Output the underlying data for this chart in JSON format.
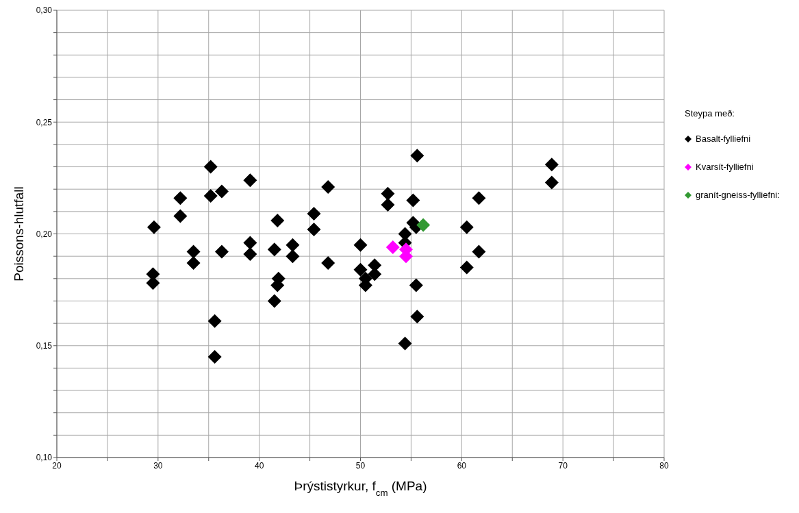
{
  "chart_data": {
    "type": "scatter",
    "xlabel": "Þrýstistyrkur, f$_{cm}$ (MPa)",
    "ylabel": "Poissons-hlutfall",
    "legend_title": "Steypa með:",
    "legend": "right",
    "grid": true,
    "marker": "diamond",
    "xlim": [
      20,
      80
    ],
    "xticks": [
      20,
      {
        "value": 25,
        "label": null
      },
      30,
      {
        "value": 35,
        "label": null
      },
      40,
      {
        "value": 45,
        "label": null
      },
      50,
      {
        "value": 55,
        "label": null
      },
      60,
      {
        "value": 65,
        "label": null
      },
      70,
      {
        "value": 75,
        "label": null
      },
      80
    ],
    "ylim": [
      0.1,
      0.3
    ],
    "yticks": [
      {
        "value": 0.1,
        "label": "0,10"
      },
      {
        "value": 0.11,
        "label": null
      },
      {
        "value": 0.12,
        "label": null
      },
      {
        "value": 0.13,
        "label": null
      },
      {
        "value": 0.14,
        "label": null
      },
      {
        "value": 0.15,
        "label": "0,15"
      },
      {
        "value": 0.16,
        "label": null
      },
      {
        "value": 0.17,
        "label": null
      },
      {
        "value": 0.18,
        "label": null
      },
      {
        "value": 0.19,
        "label": null
      },
      {
        "value": 0.2,
        "label": "0,20"
      },
      {
        "value": 0.21,
        "label": null
      },
      {
        "value": 0.22,
        "label": null
      },
      {
        "value": 0.23,
        "label": null
      },
      {
        "value": 0.24,
        "label": null
      },
      {
        "value": 0.25,
        "label": "0,25"
      },
      {
        "value": 0.26,
        "label": null
      },
      {
        "value": 0.27,
        "label": null
      },
      {
        "value": 0.28,
        "label": null
      },
      {
        "value": 0.29,
        "label": null
      },
      {
        "value": 0.3,
        "label": "0,30"
      }
    ],
    "series": [
      {
        "name": "Basalt-fylliefni",
        "color": "#000000",
        "x": [
          29.6,
          29.5,
          29.5,
          32.2,
          32.2,
          33.5,
          33.5,
          35.2,
          35.2,
          35.6,
          35.6,
          36.3,
          36.3,
          39.1,
          39.1,
          39.1,
          41.5,
          41.5,
          41.8,
          41.9,
          41.8,
          43.3,
          43.3,
          45.4,
          45.4,
          46.8,
          46.8,
          50.0,
          50.0,
          50.5,
          50.5,
          51.4,
          51.4,
          52.7,
          52.7,
          54.4,
          54.4,
          54.4,
          55.2,
          55.2,
          55.5,
          55.5,
          55.6,
          55.6,
          60.5,
          60.5,
          61.7,
          61.7,
          68.9,
          68.9
        ],
        "values": [
          0.203,
          0.182,
          0.178,
          0.216,
          0.208,
          0.192,
          0.187,
          0.23,
          0.217,
          0.161,
          0.145,
          0.219,
          0.192,
          0.224,
          0.196,
          0.191,
          0.193,
          0.17,
          0.206,
          0.18,
          0.177,
          0.195,
          0.19,
          0.209,
          0.202,
          0.221,
          0.187,
          0.195,
          0.184,
          0.18,
          0.177,
          0.186,
          0.182,
          0.218,
          0.213,
          0.2,
          0.196,
          0.151,
          0.215,
          0.205,
          0.203,
          0.177,
          0.235,
          0.163,
          0.203,
          0.185,
          0.216,
          0.192,
          0.231,
          0.223
        ]
      },
      {
        "name": "Kvarsít-fylliefni",
        "color": "#ff00ff",
        "x": [
          53.2,
          54.5,
          54.5
        ],
        "values": [
          0.194,
          0.193,
          0.19
        ]
      },
      {
        "name": "granít-gneiss-fylliefni:",
        "color": "#339933",
        "x": [
          56.2
        ],
        "values": [
          0.204
        ]
      }
    ]
  }
}
